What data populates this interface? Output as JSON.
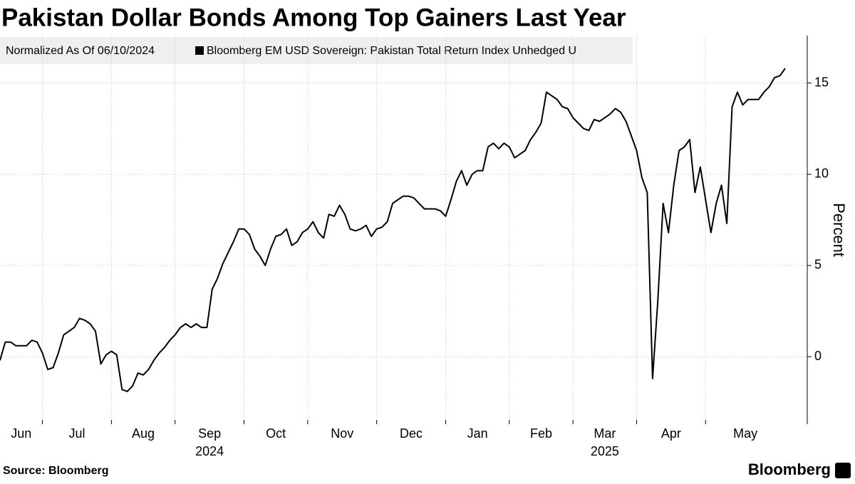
{
  "chart_data": {
    "type": "line",
    "title": "Pakistan Dollar Bonds Among Top Gainers Last Year",
    "subtitle": "Normalized As Of 06/10/2024",
    "y_label": "Percent",
    "source": "Source: Bloomberg",
    "logo": "Bloomberg",
    "categories": [
      "Jun",
      null,
      null,
      null,
      null,
      null,
      null,
      null,
      "Jul",
      null,
      null,
      null,
      null,
      null,
      null,
      null,
      null,
      null,
      null,
      null,
      null,
      "Aug",
      null,
      null,
      null,
      null,
      null,
      null,
      null,
      null,
      null,
      null,
      null,
      "Sep",
      null,
      null,
      null,
      null,
      null,
      null,
      null,
      null,
      null,
      null,
      null,
      null,
      "Oct",
      null,
      null,
      null,
      null,
      null,
      null,
      null,
      null,
      null,
      null,
      null,
      "Nov",
      null,
      null,
      null,
      null,
      null,
      null,
      null,
      null,
      null,
      null,
      null,
      null,
      "Dec",
      null,
      null,
      null,
      null,
      null,
      null,
      null,
      null,
      null,
      null,
      null,
      null,
      "Jan",
      null,
      null,
      null,
      null,
      null,
      null,
      null,
      null,
      null,
      null,
      null,
      "Feb",
      null,
      null,
      null,
      null,
      null,
      null,
      null,
      null,
      null,
      null,
      null,
      "Mar",
      null,
      null,
      null,
      null,
      null,
      null,
      null,
      null,
      null,
      null,
      null,
      "Apr",
      null,
      null,
      null,
      null,
      null,
      null,
      null,
      null,
      null,
      null,
      null,
      null,
      "May",
      null,
      null,
      null,
      null,
      null,
      null,
      null,
      null,
      null,
      null,
      null,
      null,
      null,
      null,
      null
    ],
    "category_years": [
      null,
      null,
      null,
      null,
      null,
      null,
      null,
      null,
      null,
      null,
      null,
      null,
      null,
      null,
      null,
      null,
      null,
      null,
      null,
      null,
      null,
      null,
      null,
      null,
      null,
      null,
      null,
      null,
      null,
      null,
      null,
      null,
      null,
      "2024",
      null,
      null,
      null,
      null,
      null,
      null,
      null,
      null,
      null,
      null,
      null,
      null,
      null,
      null,
      null,
      null,
      null,
      null,
      null,
      null,
      null,
      null,
      null,
      null,
      null,
      null,
      null,
      null,
      null,
      null,
      null,
      null,
      null,
      null,
      null,
      null,
      null,
      null,
      null,
      null,
      null,
      null,
      null,
      null,
      null,
      null,
      null,
      null,
      null,
      null,
      null,
      null,
      null,
      null,
      null,
      null,
      null,
      null,
      null,
      null,
      null,
      null,
      null,
      null,
      null,
      null,
      null,
      null,
      null,
      null,
      null,
      null,
      null,
      null,
      "2025",
      null,
      null,
      null,
      null,
      null,
      null,
      null,
      null,
      null,
      null,
      null,
      null,
      null,
      null,
      null,
      null,
      null,
      null,
      null,
      null,
      null,
      null,
      null,
      null,
      null,
      null,
      null,
      null,
      null,
      null,
      null,
      null,
      null,
      null,
      null,
      null,
      null,
      null,
      null,
      null,
      null,
      null,
      null,
      null,
      null
    ],
    "series": [
      {
        "name": "Bloomberg EM USD Sovereign: Pakistan Total Return Index Unhedged U",
        "color": "#000000",
        "values": [
          -0.2,
          0.8,
          0.8,
          0.6,
          0.6,
          0.6,
          0.9,
          0.8,
          0.2,
          -0.7,
          -0.6,
          0.2,
          1.2,
          1.4,
          1.6,
          2.1,
          2.0,
          1.8,
          1.4,
          -0.4,
          0.1,
          0.3,
          0.1,
          -1.8,
          -1.9,
          -1.6,
          -0.9,
          -1.0,
          -0.7,
          -0.2,
          0.2,
          0.5,
          0.9,
          1.2,
          1.6,
          1.8,
          1.6,
          1.8,
          1.6,
          1.6,
          3.7,
          4.3,
          5.1,
          5.7,
          6.3,
          7.0,
          7.0,
          6.7,
          5.9,
          5.5,
          5.0,
          5.9,
          6.6,
          6.7,
          7.0,
          6.1,
          6.3,
          6.8,
          7.0,
          7.4,
          6.8,
          6.5,
          7.8,
          7.7,
          8.3,
          7.8,
          7.0,
          6.9,
          7.0,
          7.2,
          6.6,
          7.0,
          7.1,
          7.4,
          8.4,
          8.6,
          8.8,
          8.8,
          8.7,
          8.4,
          8.1,
          8.1,
          8.1,
          8.0,
          7.7,
          8.6,
          9.6,
          10.2,
          9.4,
          10.0,
          10.2,
          10.2,
          11.5,
          11.7,
          11.4,
          11.7,
          11.5,
          10.9,
          11.1,
          11.3,
          11.9,
          12.3,
          12.8,
          14.5,
          14.3,
          14.1,
          13.7,
          13.6,
          13.1,
          12.8,
          12.5,
          12.4,
          13.0,
          12.9,
          13.1,
          13.3,
          13.6,
          13.4,
          12.9,
          12.1,
          11.3,
          9.8,
          9.0,
          -1.2,
          3.1,
          8.4,
          6.8,
          9.4,
          11.3,
          11.5,
          11.9,
          9.0,
          10.4,
          8.6,
          6.8,
          8.4,
          9.4,
          7.3,
          13.7,
          14.5,
          13.8,
          14.1,
          14.1,
          14.1,
          14.5,
          14.8,
          15.3,
          15.4,
          15.8
        ]
      }
    ],
    "ylim": [
      -3.7,
      17.6
    ],
    "yticks": [
      0,
      5,
      10,
      15
    ],
    "grid": true
  }
}
